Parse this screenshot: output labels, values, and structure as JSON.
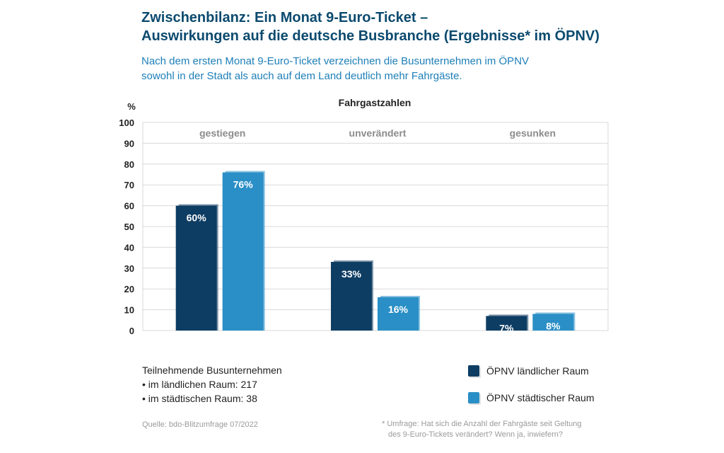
{
  "header": {
    "title_line1": "Zwischenbilanz: Ein Monat 9-Euro-Ticket –",
    "title_line2": "Auswirkungen auf die deutsche Busbranche (Ergebnisse* im ÖPNV)",
    "subtitle_line1": "Nach dem ersten Monat 9-Euro-Ticket verzeichnen die Busunternehmen im ÖPNV",
    "subtitle_line2": "sowohl in der Stadt als auch auf dem Land deutlich mehr Fahrgäste."
  },
  "chart_data": {
    "type": "bar",
    "title": "Fahrgastzahlen",
    "ylabel": "%",
    "xlabel": "",
    "ylim": [
      0,
      100
    ],
    "yticks": [
      "0",
      "10",
      "20",
      "30",
      "40",
      "50",
      "60",
      "70",
      "80",
      "90",
      "100"
    ],
    "grid": true,
    "categories": [
      "gestiegen",
      "unverändert",
      "gesunken"
    ],
    "series": [
      {
        "name": "ÖPNV ländlicher Raum",
        "values": [
          60,
          33,
          7
        ],
        "labels": [
          "60%",
          "33%",
          "7%"
        ],
        "color": "#0e3d63"
      },
      {
        "name": "ÖPNV städtischer Raum",
        "values": [
          76,
          16,
          8
        ],
        "labels": [
          "76%",
          "16%",
          "8%"
        ],
        "color": "#2a8fc6"
      }
    ],
    "legend_position": "bottom-right"
  },
  "notes": {
    "heading": "Teilnehmende Busunternehmen",
    "item1": "• im ländlichen Raum: 217",
    "item2": "• im städtischen Raum: 38"
  },
  "source": "Quelle: bdo-Blitzumfrage 07/2022",
  "footnote": {
    "line1": "* Umfrage: Hat sich die Anzahl der Fahrgäste seit Geltung",
    "line2": "des 9-Euro-Tickets verändert? Wenn ja, inwiefern?"
  },
  "colors": {
    "title": "#0b4a6f",
    "subtitle": "#1d7fb8",
    "grid": "#d9d9d9",
    "category_label": "#8c8c8c"
  }
}
